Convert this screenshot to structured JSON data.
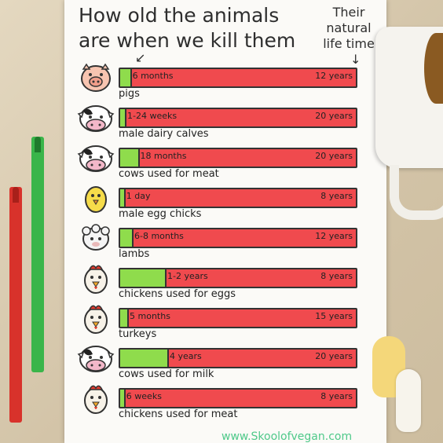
{
  "title": {
    "line1": "How old the animals",
    "line2": "are when we kill them"
  },
  "side_note": {
    "line1": "Their",
    "line2": "natural",
    "line3": "life time"
  },
  "arrow_glyph": {
    "left": "↙",
    "down": "↓"
  },
  "colors": {
    "killed_age": "#8fdc4c",
    "natural_lifetime": "#f04a4e",
    "footer": "#4fc98a"
  },
  "rows": [
    {
      "icon": "pig-icon",
      "label": "pigs",
      "killed_at": "6 months",
      "lifetime": "12 years",
      "fraction": 0.042
    },
    {
      "icon": "calf-icon",
      "label": "male dairy calves",
      "killed_at": "1-24 weeks",
      "lifetime": "20 years",
      "fraction": 0.02
    },
    {
      "icon": "cow-icon",
      "label": "cows used for meat",
      "killed_at": "18 months",
      "lifetime": "20 years",
      "fraction": 0.075
    },
    {
      "icon": "chick-icon",
      "label": "male egg chicks",
      "killed_at": "1 day",
      "lifetime": "8 years",
      "fraction": 0.012
    },
    {
      "icon": "lamb-icon",
      "label": "lambs",
      "killed_at": "6-8 months",
      "lifetime": "12 years",
      "fraction": 0.05
    },
    {
      "icon": "chicken-icon",
      "label": "chickens used for eggs",
      "killed_at": "1-2 years",
      "lifetime": "8 years",
      "fraction": 0.19
    },
    {
      "icon": "turkey-icon",
      "label": "turkeys",
      "killed_at": "5 months",
      "lifetime": "15 years",
      "fraction": 0.03
    },
    {
      "icon": "dairy-cow-icon",
      "label": "cows used for milk",
      "killed_at": "4 years",
      "lifetime": "20 years",
      "fraction": 0.2
    },
    {
      "icon": "broiler-chicken-icon",
      "label": "chickens used for meat",
      "killed_at": "6 weeks",
      "lifetime": "8 years",
      "fraction": 0.015
    }
  ],
  "footer": "www.Skoolofvegan.com"
}
